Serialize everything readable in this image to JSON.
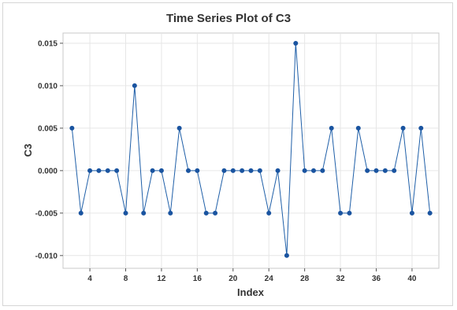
{
  "chart_data": {
    "type": "line",
    "title": "Time Series Plot of C3",
    "xlabel": "Index",
    "ylabel": "C3",
    "xlim": [
      1,
      43
    ],
    "ylim": [
      -0.0115,
      0.0162
    ],
    "x_ticks": [
      4,
      8,
      12,
      16,
      20,
      24,
      28,
      32,
      36,
      40
    ],
    "y_ticks": [
      -0.01,
      -0.005,
      0.0,
      0.005,
      0.01,
      0.015
    ],
    "y_tick_labels": [
      "-0.010",
      "-0.005",
      "0.000",
      "0.005",
      "0.010",
      "0.015"
    ],
    "grid": true,
    "line_color": "#1f5fa8",
    "marker_color": "#1a54a0",
    "series": [
      {
        "x": [
          2,
          3,
          4,
          5,
          6,
          7,
          8,
          9,
          10,
          11,
          12,
          13,
          14,
          15,
          16,
          17,
          18,
          19,
          20,
          21,
          22,
          23,
          24,
          25,
          26,
          27,
          28,
          29,
          30,
          31,
          32,
          33,
          34,
          35,
          36,
          37,
          38,
          39,
          40,
          41,
          42
        ],
        "values": [
          0.005,
          -0.005,
          0,
          0,
          0,
          0,
          -0.005,
          0.01,
          -0.005,
          0,
          0,
          -0.005,
          0.005,
          0,
          0,
          -0.005,
          -0.005,
          0,
          0,
          0,
          0,
          0,
          -0.005,
          0,
          -0.01,
          0.015,
          0,
          0,
          0,
          0.005,
          -0.005,
          -0.005,
          0.005,
          0,
          0,
          0,
          0,
          0.005,
          -0.005,
          0.005,
          -0.005
        ]
      }
    ]
  }
}
